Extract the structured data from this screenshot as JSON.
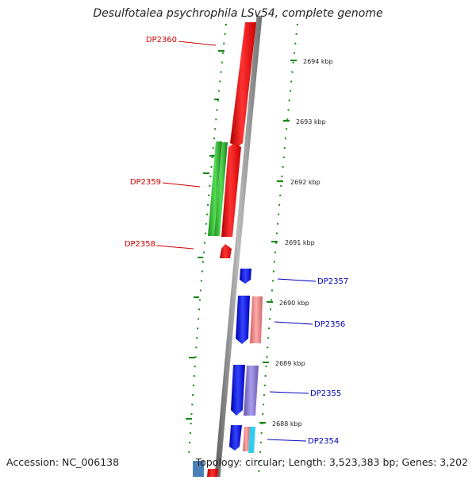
{
  "title": "Desulfotalea psychrophila LSv54, complete genome",
  "accession": "Accession: NC_006138",
  "topology": "Topology: circular; Length: 3,523,383 bp; Genes: 3,202",
  "scale_labels": [
    "2694 kbp",
    "2693 kbp",
    "2692 kbp",
    "2691 kbp",
    "2690 kbp",
    "2689 kbp",
    "2688 kbp"
  ],
  "genes": [
    {
      "name": "DP2360",
      "strand": "left",
      "color": "#ee1111"
    },
    {
      "name": "DP2359",
      "strand": "left",
      "color": "#dd1111"
    },
    {
      "name": "DP2358",
      "strand": "left",
      "color": "#dd1111"
    },
    {
      "name": "DP2357",
      "strand": "right",
      "color": "#0000bb"
    },
    {
      "name": "DP2356",
      "strand": "right",
      "color": "#0000bb"
    },
    {
      "name": "DP2355",
      "strand": "right",
      "color": "#0000bb"
    },
    {
      "name": "DP2354",
      "strand": "right",
      "color": "#0000bb"
    }
  ],
  "colors": {
    "forward_gene": "#ee1111",
    "reverse_gene": "#1111ee",
    "green_feature": "#33bb33",
    "pink_feature": "#ee8888",
    "purple_feature": "#8877cc",
    "cyan_feature": "#33ccee",
    "tick_color": "#118811",
    "backbone": "#888888"
  }
}
